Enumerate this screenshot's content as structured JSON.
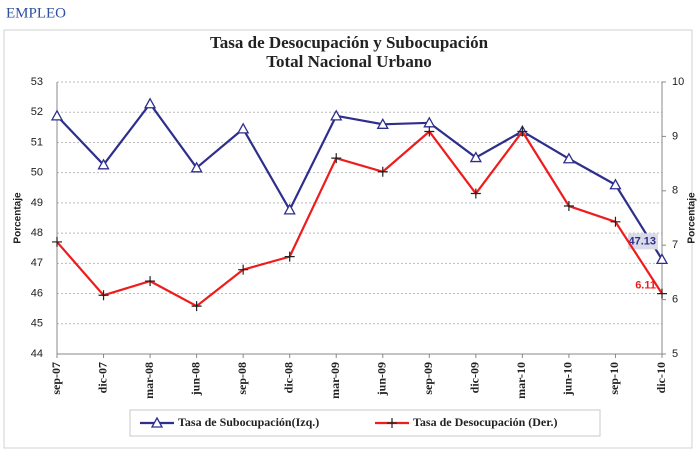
{
  "header": "EMPLEO",
  "chart_data": {
    "type": "line",
    "title": "Tasa de Desocupación y Subocupación",
    "subtitle": "Total Nacional Urbano",
    "y_label": "Porcentaje",
    "y2_label": "Porcentaje",
    "categories": [
      "sep-07",
      "dic-07",
      "mar-08",
      "jun-08",
      "sep-08",
      "dic-08",
      "mar-09",
      "jun-09",
      "sep-09",
      "dic-09",
      "mar-10",
      "jun-10",
      "sep-10",
      "dic-10"
    ],
    "series": [
      {
        "name": "Tasa de Subocupación(Izq.)",
        "color": "#2e2e8c",
        "marker": "triangle",
        "axis": "y",
        "values": [
          51.88,
          50.26,
          52.28,
          50.16,
          51.45,
          48.77,
          51.88,
          51.6,
          51.65,
          50.5,
          51.37,
          50.46,
          49.6,
          47.13
        ],
        "value_labels": [
          null,
          null,
          null,
          null,
          null,
          null,
          null,
          null,
          null,
          null,
          null,
          null,
          null,
          "47.13"
        ]
      },
      {
        "name": "Tasa de Desocupación (Der.)",
        "color": "#ee1c1c",
        "marker": "plus",
        "axis": "y2",
        "values": [
          7.06,
          6.08,
          6.34,
          5.88,
          6.55,
          6.79,
          8.6,
          8.35,
          9.09,
          7.95,
          9.09,
          7.72,
          7.43,
          6.11
        ],
        "value_labels": [
          null,
          null,
          null,
          null,
          null,
          null,
          null,
          null,
          null,
          null,
          null,
          null,
          null,
          "6.11"
        ]
      }
    ],
    "ylim": [
      44,
      53
    ],
    "yticks": [
      44,
      45,
      46,
      47,
      48,
      49,
      50,
      51,
      52,
      53
    ],
    "y2lim": [
      5,
      10
    ],
    "y2ticks": [
      5,
      6,
      7,
      8,
      9,
      10
    ],
    "grid": true,
    "legend": "bottom"
  }
}
